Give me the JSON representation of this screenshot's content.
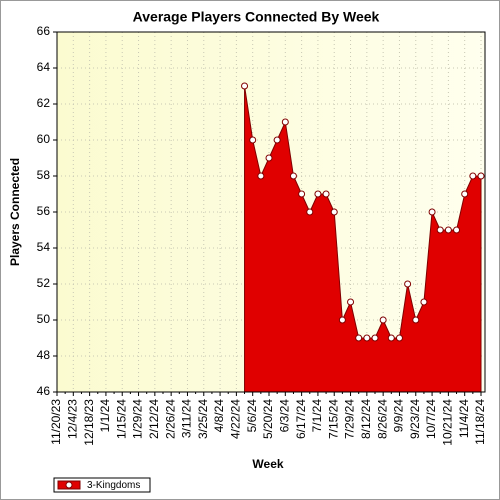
{
  "chart_data": {
    "type": "area",
    "title": "Average Players Connected By Week",
    "x_label": "Week",
    "y_label": "Players Connected",
    "categories": [
      "11/20/23",
      null,
      "12/4/23",
      null,
      "12/18/23",
      null,
      "1/1/24",
      null,
      "1/15/24",
      null,
      "1/29/24",
      null,
      "2/12/24",
      null,
      "2/26/24",
      null,
      "3/11/24",
      null,
      "3/25/24",
      null,
      "4/8/24",
      null,
      "4/22/24",
      null,
      "5/6/24",
      null,
      "5/20/24",
      null,
      "6/3/24",
      null,
      "6/17/24",
      null,
      "7/1/24",
      null,
      "7/15/24",
      null,
      "7/29/24",
      null,
      "8/12/24",
      null,
      "8/26/24",
      null,
      "9/9/24",
      null,
      "9/23/24",
      null,
      "10/7/24",
      null,
      "10/21/24",
      null,
      "11/4/24",
      null,
      "11/18/24"
    ],
    "series": [
      {
        "name": "3-Kingdoms",
        "color": "#e00000",
        "values": [
          null,
          null,
          null,
          null,
          null,
          null,
          null,
          null,
          null,
          null,
          null,
          null,
          null,
          null,
          null,
          null,
          null,
          null,
          null,
          null,
          null,
          null,
          null,
          63,
          60,
          58,
          59,
          60,
          61,
          58,
          57,
          56,
          57,
          57,
          56,
          50,
          51,
          49,
          49,
          49,
          50,
          49,
          49,
          52,
          50,
          51,
          56,
          55,
          55,
          55,
          57,
          58,
          58
        ]
      }
    ],
    "ylim": [
      46,
      66
    ],
    "yticks": [
      46,
      48,
      50,
      52,
      54,
      56,
      58,
      60,
      62,
      64,
      66
    ],
    "grid": true,
    "legend": "bottom-left"
  }
}
